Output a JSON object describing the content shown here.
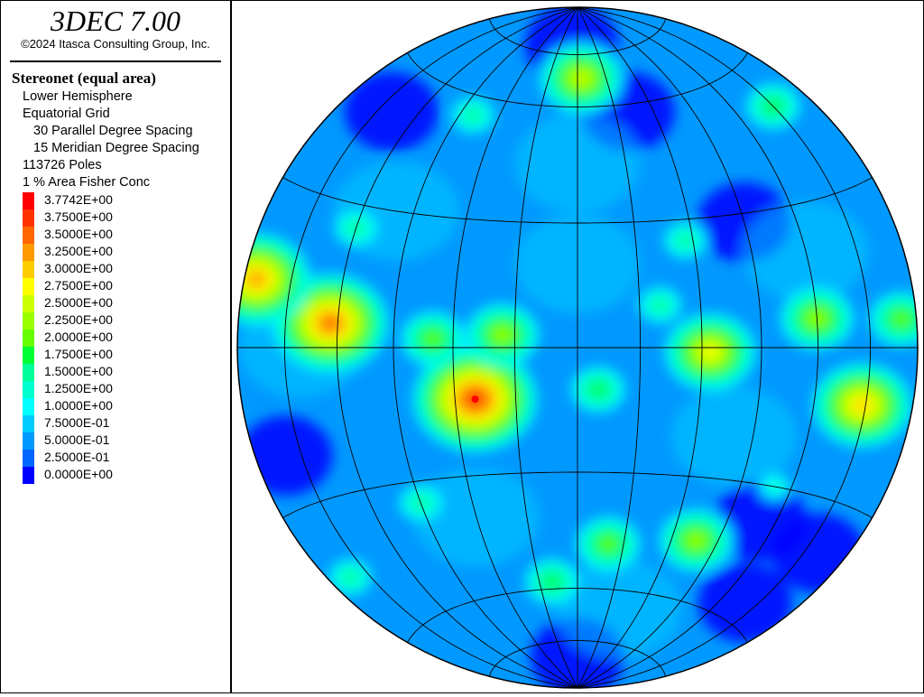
{
  "header": {
    "app_title": "3DEC 7.00",
    "copyright": "©2024 Itasca Consulting Group, Inc."
  },
  "legend": {
    "plot_title": "Stereonet (equal area)",
    "lines": [
      "Lower Hemisphere",
      "Equatorial Grid",
      "30 Parallel Degree Spacing",
      "15 Meridian Degree Spacing",
      "113726 Poles",
      "1 % Area Fisher Conc"
    ],
    "scale": [
      {
        "label": "3.7742E+00",
        "color": "#ff0000"
      },
      {
        "label": "3.7500E+00",
        "color": "#ff3300"
      },
      {
        "label": "3.5000E+00",
        "color": "#ff6600"
      },
      {
        "label": "3.2500E+00",
        "color": "#ff9900"
      },
      {
        "label": "3.0000E+00",
        "color": "#ffcc00"
      },
      {
        "label": "2.7500E+00",
        "color": "#ffff00"
      },
      {
        "label": "2.5000E+00",
        "color": "#ccff00"
      },
      {
        "label": "2.2500E+00",
        "color": "#99ff00"
      },
      {
        "label": "2.0000E+00",
        "color": "#66ff00"
      },
      {
        "label": "1.7500E+00",
        "color": "#00ff33"
      },
      {
        "label": "1.5000E+00",
        "color": "#00ff99"
      },
      {
        "label": "1.2500E+00",
        "color": "#00ffcc"
      },
      {
        "label": "1.0000E+00",
        "color": "#00ffff"
      },
      {
        "label": "7.5000E-01",
        "color": "#00ccff"
      },
      {
        "label": "5.0000E-01",
        "color": "#0099ff"
      },
      {
        "label": "2.5000E-01",
        "color": "#0066ff"
      },
      {
        "label": "0.0000E+00",
        "color": "#0000ff"
      }
    ]
  },
  "chart_data": {
    "type": "heatmap",
    "projection": "equal-area stereonet",
    "hemisphere": "lower",
    "grid": "equatorial",
    "parallel_spacing_deg": 30,
    "meridian_spacing_deg": 15,
    "pole_count": 113726,
    "max_concentration": 3.7742,
    "contour_levels": [
      0.0,
      0.25,
      0.5,
      0.75,
      1.0,
      1.25,
      1.5,
      1.75,
      2.0,
      2.25,
      2.5,
      2.75,
      3.0,
      3.25,
      3.5,
      3.75,
      3.7742
    ],
    "hotspots": [
      {
        "longitude_deg": -25,
        "latitude_deg": -12,
        "value": 3.7742
      },
      {
        "longitude_deg": -62,
        "latitude_deg": 5,
        "value": 3.5
      },
      {
        "longitude_deg": -86,
        "latitude_deg": 12,
        "value": 3.25
      },
      {
        "longitude_deg": 74,
        "latitude_deg": -11,
        "value": 3.0
      },
      {
        "longitude_deg": 32,
        "latitude_deg": -1,
        "value": 2.75
      },
      {
        "longitude_deg": 2,
        "latitude_deg": 68,
        "value": 2.5
      },
      {
        "longitude_deg": -18,
        "latitude_deg": 3,
        "value": 2.25
      },
      {
        "longitude_deg": -35,
        "latitude_deg": 2,
        "value": 2.0
      },
      {
        "longitude_deg": 60,
        "latitude_deg": 6,
        "value": 2.25
      },
      {
        "longitude_deg": 85,
        "latitude_deg": 5,
        "value": 2.0
      },
      {
        "longitude_deg": 10,
        "latitude_deg": -48,
        "value": 2.0
      },
      {
        "longitude_deg": 38,
        "latitude_deg": -45,
        "value": 2.25
      },
      {
        "longitude_deg": -10,
        "latitude_deg": -58,
        "value": 1.75
      },
      {
        "longitude_deg": 5,
        "latitude_deg": -10,
        "value": 1.75
      },
      {
        "longitude_deg": -45,
        "latitude_deg": -35,
        "value": 1.5
      },
      {
        "longitude_deg": 75,
        "latitude_deg": 50,
        "value": 1.75
      },
      {
        "longitude_deg": -82,
        "latitude_deg": -45,
        "value": 1.5
      },
      {
        "longitude_deg": 28,
        "latitude_deg": 25,
        "value": 1.5
      },
      {
        "longitude_deg": -40,
        "latitude_deg": 55,
        "value": 1.5
      },
      {
        "longitude_deg": 55,
        "latitude_deg": -30,
        "value": 1.25
      },
      {
        "longitude_deg": 20,
        "latitude_deg": 10,
        "value": 1.5
      },
      {
        "longitude_deg": -60,
        "latitude_deg": 25,
        "value": 1.5
      }
    ],
    "lows": [
      {
        "longitude_deg": 45,
        "latitude_deg": 28
      },
      {
        "longitude_deg": 55,
        "latitude_deg": -38
      },
      {
        "longitude_deg": 70,
        "latitude_deg": -55
      },
      {
        "longitude_deg": -80,
        "latitude_deg": -20
      },
      {
        "longitude_deg": -5,
        "latitude_deg": 78
      },
      {
        "longitude_deg": 20,
        "latitude_deg": 58
      },
      {
        "longitude_deg": 80,
        "latitude_deg": -40
      },
      {
        "longitude_deg": -70,
        "latitude_deg": 50
      },
      {
        "longitude_deg": 0,
        "latitude_deg": -80
      }
    ]
  }
}
